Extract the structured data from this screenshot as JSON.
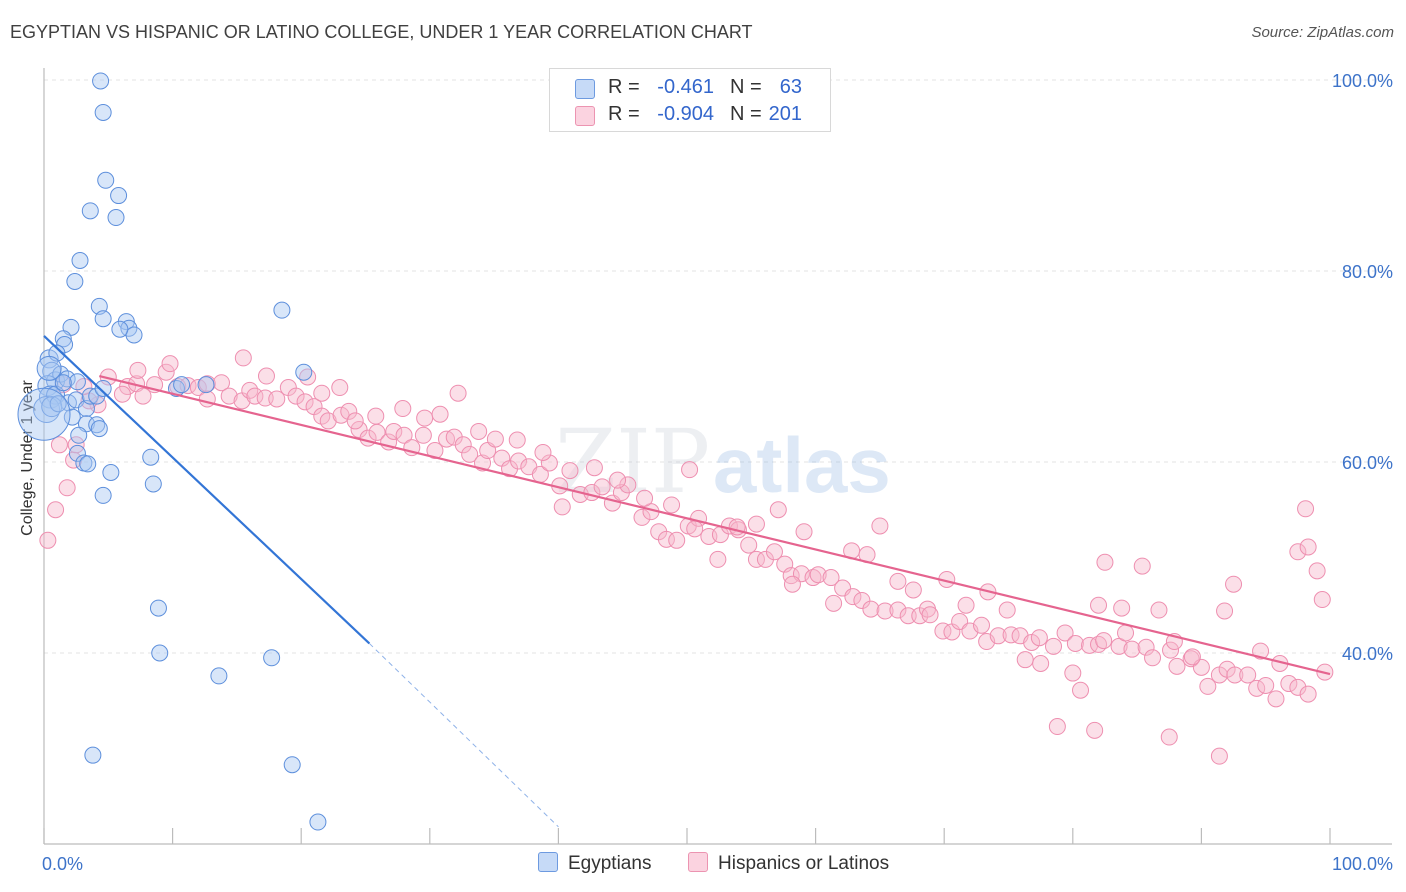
{
  "title": "EGYPTIAN VS HISPANIC OR LATINO COLLEGE, UNDER 1 YEAR CORRELATION CHART",
  "source": "Source: ZipAtlas.com",
  "watermark": {
    "part1": "ZIP",
    "part2": "atlas"
  },
  "legend": {
    "rows": [
      {
        "r_label": "R =",
        "r_value": "-0.461",
        "n_label": "N =",
        "n_value": "63",
        "color": "#8fb6ee"
      },
      {
        "r_label": "R =",
        "r_value": "-0.904",
        "n_label": "N =",
        "n_value": "201",
        "color": "#f4a9c1"
      }
    ]
  },
  "bottom_legend": {
    "egyptians": "Egyptians",
    "hispanics": "Hispanics or Latinos"
  },
  "chart_data": {
    "type": "scatter",
    "xlabel": "",
    "ylabel": "College, Under 1 year",
    "xlim": [
      0,
      100
    ],
    "ylim": [
      20,
      102
    ],
    "x_tick_labels": [
      "0.0%",
      "100.0%"
    ],
    "y_tick_labels": [
      {
        "value": 100,
        "label": "100.0%"
      },
      {
        "value": 80,
        "label": "80.0%"
      },
      {
        "value": 60,
        "label": "60.0%"
      },
      {
        "value": 40,
        "label": "40.0%"
      }
    ],
    "grid": true,
    "colors": {
      "egyptians": "#7fa9e8",
      "egyptians_line": "#3375d6",
      "hispanics": "#f3a3bd",
      "hispanics_line": "#e5648f"
    },
    "series": [
      {
        "name": "Egyptians",
        "trend": {
          "x0": 0,
          "y0": 73.2,
          "x1": 25.3,
          "y1": 41.0,
          "dash_to_x": 40,
          "dash_to_y": 21.8
        },
        "points": [
          [
            4.4,
            99.9
          ],
          [
            4.6,
            96.6
          ],
          [
            4.8,
            89.5
          ],
          [
            5.8,
            87.9
          ],
          [
            3.6,
            86.3
          ],
          [
            5.6,
            85.6
          ],
          [
            2.8,
            81.1
          ],
          [
            2.4,
            78.9
          ],
          [
            4.3,
            76.3
          ],
          [
            4.6,
            75.0
          ],
          [
            6.4,
            74.7
          ],
          [
            6.6,
            74.0
          ],
          [
            7.0,
            73.3
          ],
          [
            5.9,
            73.9
          ],
          [
            2.1,
            74.1
          ],
          [
            1.5,
            72.9
          ],
          [
            1.6,
            72.3
          ],
          [
            0.4,
            70.8
          ],
          [
            1.0,
            71.4
          ],
          [
            0.6,
            69.5
          ],
          [
            0.9,
            68.5
          ],
          [
            1.3,
            69.2
          ],
          [
            1.8,
            68.7
          ],
          [
            2.6,
            68.4
          ],
          [
            0.3,
            68.0
          ],
          [
            0.5,
            66.8
          ],
          [
            0.9,
            67.0
          ],
          [
            1.5,
            68.3
          ],
          [
            1.9,
            66.2
          ],
          [
            2.5,
            66.5
          ],
          [
            3.3,
            65.6
          ],
          [
            3.6,
            66.9
          ],
          [
            4.1,
            66.9
          ],
          [
            4.6,
            67.7
          ],
          [
            0.2,
            65.5
          ],
          [
            0.6,
            65.8
          ],
          [
            1.1,
            66.1
          ],
          [
            2.2,
            64.7
          ],
          [
            3.3,
            64.0
          ],
          [
            4.1,
            63.9
          ],
          [
            4.3,
            63.5
          ],
          [
            2.7,
            62.8
          ],
          [
            2.6,
            60.9
          ],
          [
            3.1,
            59.9
          ],
          [
            3.4,
            59.8
          ],
          [
            4.6,
            56.5
          ],
          [
            5.2,
            58.9
          ],
          [
            8.3,
            60.5
          ],
          [
            8.5,
            57.7
          ],
          [
            10.3,
            67.7
          ],
          [
            10.7,
            68.1
          ],
          [
            12.6,
            68.1
          ],
          [
            18.5,
            75.9
          ],
          [
            20.2,
            69.4
          ],
          [
            8.9,
            44.7
          ],
          [
            9.0,
            40.0
          ],
          [
            13.6,
            37.6
          ],
          [
            17.7,
            39.5
          ],
          [
            3.8,
            29.3
          ],
          [
            19.3,
            28.3
          ],
          [
            21.3,
            22.3
          ],
          [
            0.0,
            65.0
          ],
          [
            0.4,
            69.8
          ]
        ],
        "sizes": [
          8,
          8,
          8,
          8,
          8,
          8,
          8,
          8,
          8,
          8,
          8,
          8,
          8,
          8,
          8,
          8,
          8,
          9,
          8,
          9,
          9,
          8,
          8,
          8,
          10,
          11,
          9,
          8,
          8,
          8,
          8,
          8,
          8,
          8,
          13,
          10,
          8,
          8,
          8,
          8,
          8,
          8,
          8,
          8,
          8,
          8,
          8,
          8,
          8,
          8,
          8,
          8,
          8,
          8,
          8,
          8,
          8,
          8,
          8,
          8,
          8,
          26,
          12
        ]
      },
      {
        "name": "Hispanics or Latinos",
        "trend": {
          "x0": 4.3,
          "y0": 69.0,
          "x1": 100,
          "y1": 37.8
        },
        "points": [
          [
            1.2,
            61.8
          ],
          [
            2.3,
            60.2
          ],
          [
            1.8,
            57.3
          ],
          [
            0.9,
            55.0
          ],
          [
            0.3,
            51.8
          ],
          [
            2.5,
            61.8
          ],
          [
            4.2,
            66.0
          ],
          [
            3.5,
            66.4
          ],
          [
            6.5,
            67.9
          ],
          [
            7.2,
            68.2
          ],
          [
            7.3,
            69.6
          ],
          [
            8.6,
            68.1
          ],
          [
            9.5,
            69.4
          ],
          [
            10.4,
            67.9
          ],
          [
            11.2,
            68.0
          ],
          [
            12.0,
            67.8
          ],
          [
            12.7,
            68.2
          ],
          [
            13.8,
            68.3
          ],
          [
            14.4,
            66.9
          ],
          [
            15.4,
            66.4
          ],
          [
            16.0,
            67.5
          ],
          [
            16.4,
            66.9
          ],
          [
            17.2,
            66.7
          ],
          [
            18.1,
            66.6
          ],
          [
            19.0,
            67.8
          ],
          [
            19.6,
            66.9
          ],
          [
            20.3,
            66.3
          ],
          [
            21.0,
            65.8
          ],
          [
            21.6,
            64.8
          ],
          [
            22.1,
            64.3
          ],
          [
            23.1,
            64.9
          ],
          [
            23.7,
            65.3
          ],
          [
            24.5,
            63.4
          ],
          [
            25.2,
            62.5
          ],
          [
            25.9,
            63.1
          ],
          [
            26.8,
            62.1
          ],
          [
            27.2,
            63.2
          ],
          [
            28.0,
            62.8
          ],
          [
            28.6,
            61.5
          ],
          [
            29.5,
            62.8
          ],
          [
            30.4,
            61.2
          ],
          [
            31.3,
            62.4
          ],
          [
            31.9,
            62.6
          ],
          [
            32.6,
            61.8
          ],
          [
            33.1,
            60.8
          ],
          [
            34.1,
            59.9
          ],
          [
            34.5,
            61.2
          ],
          [
            35.6,
            60.4
          ],
          [
            36.2,
            59.3
          ],
          [
            36.9,
            60.1
          ],
          [
            37.7,
            59.5
          ],
          [
            38.6,
            58.7
          ],
          [
            39.3,
            59.9
          ],
          [
            40.1,
            57.5
          ],
          [
            40.9,
            59.1
          ],
          [
            41.7,
            56.6
          ],
          [
            42.6,
            56.8
          ],
          [
            43.4,
            57.4
          ],
          [
            44.2,
            55.7
          ],
          [
            44.9,
            56.8
          ],
          [
            45.4,
            57.6
          ],
          [
            46.5,
            54.2
          ],
          [
            47.2,
            54.8
          ],
          [
            47.8,
            52.7
          ],
          [
            48.4,
            51.9
          ],
          [
            49.2,
            51.8
          ],
          [
            50.1,
            53.3
          ],
          [
            50.9,
            54.1
          ],
          [
            51.7,
            52.2
          ],
          [
            52.6,
            52.4
          ],
          [
            53.3,
            53.3
          ],
          [
            54.0,
            52.9
          ],
          [
            54.8,
            51.3
          ],
          [
            55.4,
            49.8
          ],
          [
            56.1,
            49.8
          ],
          [
            56.8,
            50.6
          ],
          [
            57.6,
            49.3
          ],
          [
            58.1,
            48.1
          ],
          [
            58.9,
            48.3
          ],
          [
            59.8,
            47.9
          ],
          [
            60.2,
            48.2
          ],
          [
            61.2,
            47.9
          ],
          [
            62.1,
            46.8
          ],
          [
            62.9,
            45.9
          ],
          [
            63.6,
            45.5
          ],
          [
            64.3,
            44.6
          ],
          [
            65.4,
            44.4
          ],
          [
            66.4,
            44.5
          ],
          [
            67.2,
            43.9
          ],
          [
            68.1,
            43.9
          ],
          [
            68.7,
            44.6
          ],
          [
            69.9,
            42.3
          ],
          [
            70.6,
            42.2
          ],
          [
            71.2,
            43.3
          ],
          [
            72.0,
            42.3
          ],
          [
            72.9,
            42.9
          ],
          [
            73.3,
            41.2
          ],
          [
            74.2,
            41.8
          ],
          [
            75.2,
            41.9
          ],
          [
            75.9,
            41.8
          ],
          [
            76.8,
            41.1
          ],
          [
            77.4,
            41.6
          ],
          [
            78.5,
            40.7
          ],
          [
            79.4,
            42.1
          ],
          [
            80.2,
            41.0
          ],
          [
            81.3,
            40.8
          ],
          [
            82.0,
            40.9
          ],
          [
            82.4,
            41.3
          ],
          [
            83.6,
            40.7
          ],
          [
            84.1,
            42.1
          ],
          [
            84.6,
            40.4
          ],
          [
            85.7,
            40.6
          ],
          [
            86.2,
            39.5
          ],
          [
            87.6,
            40.3
          ],
          [
            88.1,
            38.6
          ],
          [
            89.2,
            39.4
          ],
          [
            90.0,
            38.5
          ],
          [
            91.4,
            37.7
          ],
          [
            92.0,
            38.3
          ],
          [
            92.6,
            37.7
          ],
          [
            93.6,
            37.7
          ],
          [
            94.3,
            36.3
          ],
          [
            95.0,
            36.6
          ],
          [
            95.8,
            35.2
          ],
          [
            96.8,
            36.8
          ],
          [
            97.5,
            36.4
          ],
          [
            98.3,
            35.7
          ],
          [
            99.6,
            38.0
          ],
          [
            1.5,
            68.1
          ],
          [
            3.1,
            67.9
          ],
          [
            5.0,
            68.9
          ],
          [
            6.1,
            67.1
          ],
          [
            7.7,
            66.9
          ],
          [
            9.8,
            70.3
          ],
          [
            12.7,
            66.6
          ],
          [
            15.5,
            70.9
          ],
          [
            17.3,
            69.0
          ],
          [
            20.5,
            68.9
          ],
          [
            21.6,
            67.2
          ],
          [
            23.0,
            67.8
          ],
          [
            24.2,
            64.3
          ],
          [
            25.8,
            64.8
          ],
          [
            27.9,
            65.6
          ],
          [
            29.6,
            64.6
          ],
          [
            30.8,
            65.0
          ],
          [
            32.2,
            67.2
          ],
          [
            33.8,
            63.2
          ],
          [
            35.1,
            62.4
          ],
          [
            36.8,
            62.3
          ],
          [
            38.8,
            61.0
          ],
          [
            40.3,
            55.3
          ],
          [
            42.8,
            59.4
          ],
          [
            44.6,
            58.1
          ],
          [
            46.7,
            56.2
          ],
          [
            48.8,
            55.5
          ],
          [
            50.2,
            59.2
          ],
          [
            50.6,
            53.0
          ],
          [
            52.4,
            49.8
          ],
          [
            53.9,
            53.2
          ],
          [
            55.4,
            53.5
          ],
          [
            57.1,
            55.0
          ],
          [
            58.2,
            47.2
          ],
          [
            59.1,
            52.7
          ],
          [
            61.4,
            45.2
          ],
          [
            62.8,
            50.7
          ],
          [
            64.0,
            50.3
          ],
          [
            65.0,
            53.3
          ],
          [
            66.4,
            47.5
          ],
          [
            67.6,
            46.6
          ],
          [
            68.9,
            44.0
          ],
          [
            70.2,
            47.7
          ],
          [
            71.7,
            45.0
          ],
          [
            73.4,
            46.4
          ],
          [
            74.9,
            44.5
          ],
          [
            76.3,
            39.3
          ],
          [
            77.5,
            38.9
          ],
          [
            80.0,
            37.9
          ],
          [
            80.6,
            36.1
          ],
          [
            82.5,
            49.5
          ],
          [
            83.8,
            44.7
          ],
          [
            85.4,
            49.1
          ],
          [
            86.7,
            44.5
          ],
          [
            87.9,
            41.2
          ],
          [
            89.3,
            39.6
          ],
          [
            90.5,
            36.5
          ],
          [
            91.8,
            44.4
          ],
          [
            92.5,
            47.2
          ],
          [
            94.6,
            40.2
          ],
          [
            96.1,
            38.9
          ],
          [
            97.5,
            50.6
          ],
          [
            98.3,
            51.1
          ],
          [
            99.4,
            45.6
          ],
          [
            99.0,
            48.6
          ],
          [
            78.8,
            32.3
          ],
          [
            81.7,
            31.9
          ],
          [
            87.5,
            31.2
          ],
          [
            91.4,
            29.2
          ],
          [
            98.1,
            55.1
          ],
          [
            82.0,
            45.0
          ]
        ]
      }
    ]
  }
}
